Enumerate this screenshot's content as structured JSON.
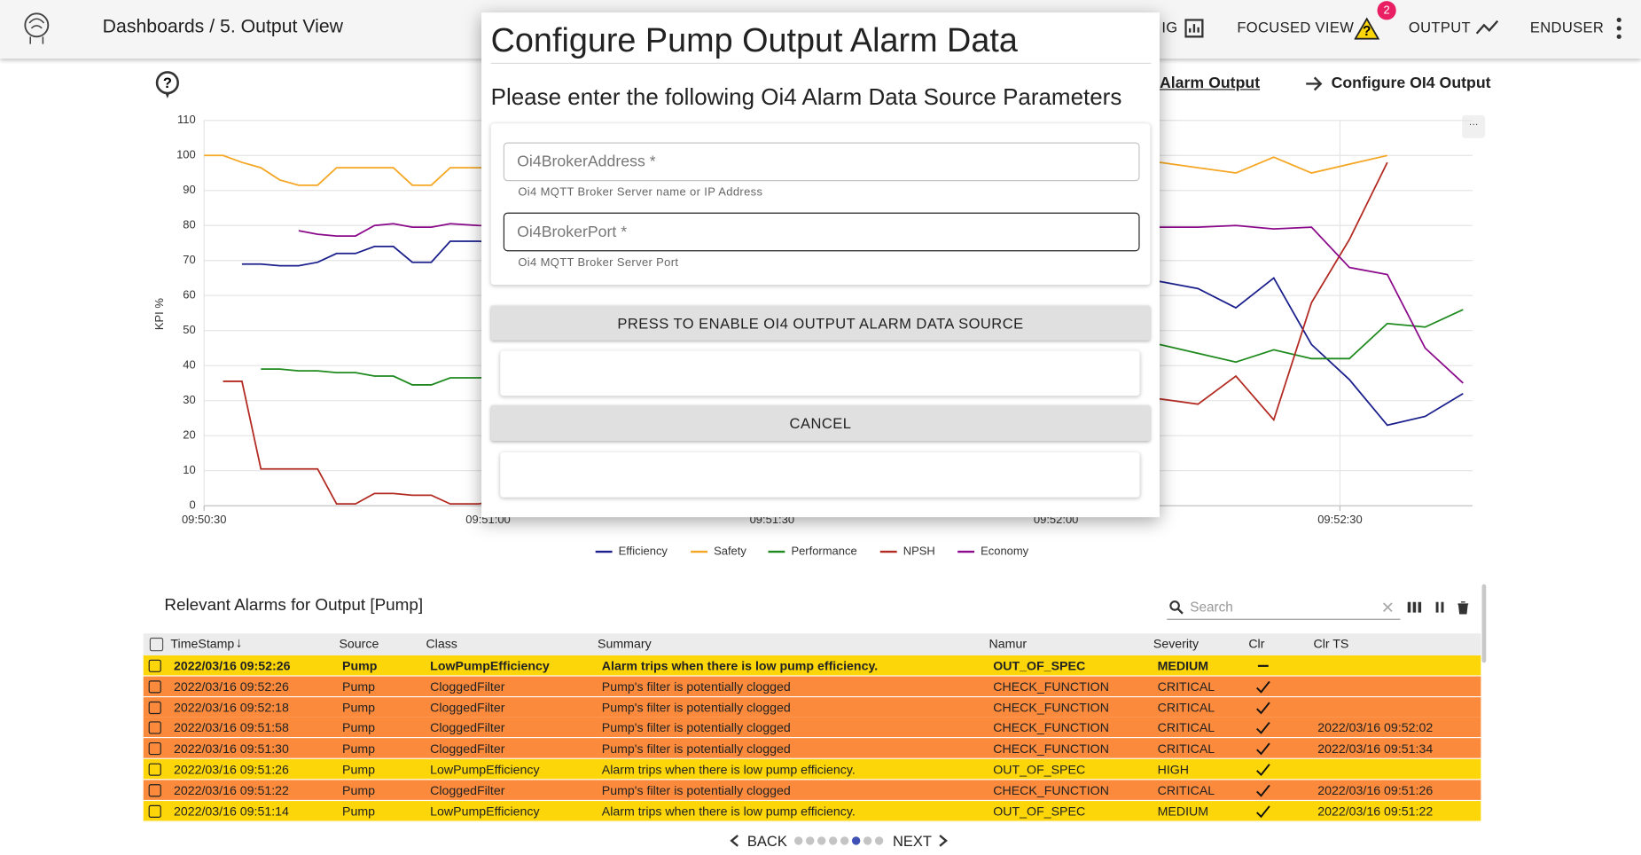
{
  "header": {
    "breadcrumb_root": "Dashboards",
    "breadcrumb_sep": "/",
    "breadcrumb_current": "5. Output View",
    "nav": {
      "partial": "IG",
      "focused_view": "FOCUSED VIEW",
      "badge": 2,
      "output": "OUTPUT",
      "user": "ENDUSER"
    }
  },
  "stepper": {
    "previous": "Alarm Output",
    "next": "Configure OI4 Output"
  },
  "chart_data": {
    "type": "line",
    "ylabel": "KPI %",
    "x": [
      "09:50:30",
      "09:50:32",
      "09:50:34",
      "09:50:36",
      "09:50:38",
      "09:50:40",
      "09:50:42",
      "09:50:44",
      "09:50:46",
      "09:50:48",
      "09:50:50",
      "09:50:52",
      "09:50:54",
      "09:50:56",
      "09:50:59",
      "09:52:11",
      "09:52:15",
      "09:52:19",
      "09:52:23",
      "09:52:27",
      "09:52:31",
      "09:52:35",
      "09:52:39",
      "09:52:43"
    ],
    "series": [
      {
        "name": "Efficiency",
        "color": "#1a1f8c",
        "values": [
          null,
          null,
          69,
          69,
          68.5,
          68.5,
          69.5,
          72,
          72,
          74,
          74,
          69.5,
          69.5,
          75.5,
          75.5,
          64,
          62,
          56.5,
          65,
          46,
          36,
          23,
          25.5,
          32
        ]
      },
      {
        "name": "Safety",
        "color": "#f5a623",
        "values": [
          100,
          100,
          98,
          96.5,
          93,
          91.5,
          91.5,
          96.5,
          96.5,
          96.5,
          96.5,
          91.5,
          91.5,
          96.5,
          96.5,
          98,
          96.5,
          95,
          99.5,
          95,
          97.5,
          100,
          null,
          null
        ]
      },
      {
        "name": "Performance",
        "color": "#1e8a1e",
        "values": [
          null,
          null,
          null,
          39,
          39,
          38.5,
          38.5,
          38,
          38,
          37,
          37,
          34.5,
          34.5,
          36.5,
          36.5,
          46,
          43.5,
          41,
          44.5,
          42,
          42,
          52,
          51,
          56
        ]
      },
      {
        "name": "NPSH",
        "color": "#b22a22",
        "values": [
          null,
          35.5,
          35.5,
          10.5,
          10.5,
          10.5,
          10.5,
          0.5,
          0.5,
          3.5,
          3.5,
          3,
          3,
          0.5,
          0.5,
          30.5,
          29,
          37,
          24.5,
          58,
          76,
          98,
          null,
          null
        ]
      },
      {
        "name": "Economy",
        "color": "#8b0a8b",
        "values": [
          null,
          null,
          null,
          null,
          null,
          78.5,
          77.5,
          77,
          77,
          80,
          80.5,
          79.5,
          79.5,
          80.5,
          80,
          79.5,
          79.5,
          80,
          79,
          79.5,
          68,
          66,
          45,
          35
        ]
      }
    ],
    "xlim": [
      "09:50:30",
      "09:52:44"
    ],
    "xticks": [
      "09:50:30",
      "09:51:00",
      "09:51:30",
      "09:52:00",
      "09:52:30"
    ],
    "ylim": [
      0,
      110
    ],
    "yticks": [
      0,
      10,
      20,
      30,
      40,
      50,
      60,
      70,
      80,
      90,
      100,
      110
    ],
    "grid": true,
    "legend": "bottom"
  },
  "dialog": {
    "title": "Configure Pump Output Alarm Data",
    "subtitle": "Please enter the following Oi4 Alarm Data Source Parameters",
    "fields": [
      {
        "label": "Oi4BrokerAddress *",
        "helper": "Oi4 MQTT Broker Server name or IP Address"
      },
      {
        "label": "Oi4BrokerPort *",
        "helper": "Oi4 MQTT Broker Server Port"
      }
    ],
    "enable_button": "PRESS TO ENABLE OI4 OUTPUT ALARM DATA SOURCE",
    "cancel_button": "CANCEL"
  },
  "alarms": {
    "title": "Relevant Alarms for Output [Pump]",
    "search_placeholder": "Search",
    "columns": [
      "TimeStamp",
      "Source",
      "Class",
      "Summary",
      "Namur",
      "Severity",
      "Clr",
      "Clr TS"
    ],
    "rows": [
      {
        "timestamp": "2022/03/16 09:52:26",
        "source": "Pump",
        "class": "LowPumpEfficiency",
        "summary": "Alarm trips when there is low pump efficiency.",
        "namur": "OUT_OF_SPEC",
        "severity": "MEDIUM",
        "cleared": false,
        "clr_ts": null,
        "color": "#fdd60a",
        "bold": true
      },
      {
        "timestamp": "2022/03/16 09:52:26",
        "source": "Pump",
        "class": "CloggedFilter",
        "summary": "Pump's filter is potentially clogged",
        "namur": "CHECK_FUNCTION",
        "severity": "CRITICAL",
        "cleared": true,
        "clr_ts": null,
        "color": "#fb8a3c"
      },
      {
        "timestamp": "2022/03/16 09:52:18",
        "source": "Pump",
        "class": "CloggedFilter",
        "summary": "Pump's filter is potentially clogged",
        "namur": "CHECK_FUNCTION",
        "severity": "CRITICAL",
        "cleared": true,
        "clr_ts": null,
        "color": "#fb8a3c"
      },
      {
        "timestamp": "2022/03/16 09:51:58",
        "source": "Pump",
        "class": "CloggedFilter",
        "summary": "Pump's filter is potentially clogged",
        "namur": "CHECK_FUNCTION",
        "severity": "CRITICAL",
        "cleared": true,
        "clr_ts": "2022/03/16 09:52:02",
        "color": "#fb8a3c"
      },
      {
        "timestamp": "2022/03/16 09:51:30",
        "source": "Pump",
        "class": "CloggedFilter",
        "summary": "Pump's filter is potentially clogged",
        "namur": "CHECK_FUNCTION",
        "severity": "CRITICAL",
        "cleared": true,
        "clr_ts": "2022/03/16 09:51:34",
        "color": "#fb8a3c"
      },
      {
        "timestamp": "2022/03/16 09:51:26",
        "source": "Pump",
        "class": "LowPumpEfficiency",
        "summary": "Alarm trips when there is low pump efficiency.",
        "namur": "OUT_OF_SPEC",
        "severity": "HIGH",
        "cleared": true,
        "clr_ts": null,
        "color": "#fdd60a"
      },
      {
        "timestamp": "2022/03/16 09:51:22",
        "source": "Pump",
        "class": "CloggedFilter",
        "summary": "Pump's filter is potentially clogged",
        "namur": "CHECK_FUNCTION",
        "severity": "CRITICAL",
        "cleared": true,
        "clr_ts": "2022/03/16 09:51:26",
        "color": "#fb8a3c"
      },
      {
        "timestamp": "2022/03/16 09:51:14",
        "source": "Pump",
        "class": "LowPumpEfficiency",
        "summary": "Alarm trips when there is low pump efficiency.",
        "namur": "OUT_OF_SPEC",
        "severity": "MEDIUM",
        "cleared": true,
        "clr_ts": "2022/03/16 09:51:22",
        "color": "#fdd60a"
      }
    ]
  },
  "pager": {
    "back": "BACK",
    "next": "NEXT",
    "pages": 8,
    "active": 5
  }
}
